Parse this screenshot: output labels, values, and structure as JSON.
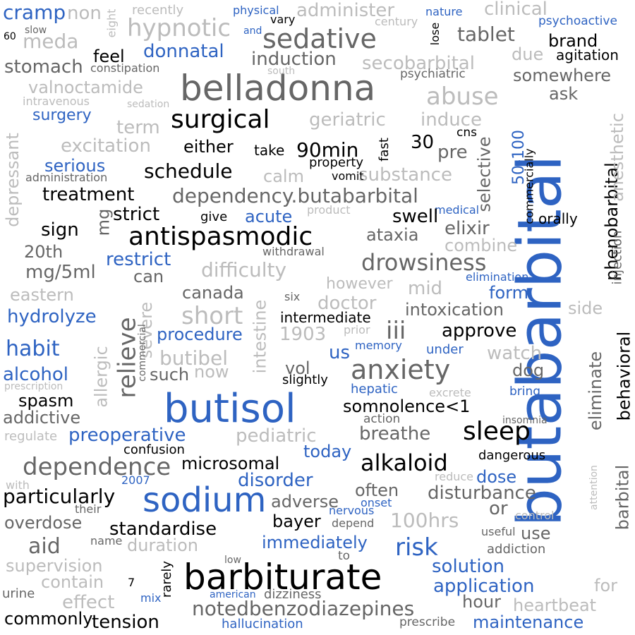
{
  "colors": {
    "black": "#000000",
    "blue": "#2e63c2",
    "dark": "#666666",
    "light": "#bcbcbc",
    "background": "#ffffff"
  },
  "words": [
    {
      "text": "butabarbital",
      "color": "blue",
      "vertical": true
    },
    {
      "text": "belladonna",
      "color": "dark"
    },
    {
      "text": "butisol",
      "color": "blue"
    },
    {
      "text": "barbiturate",
      "color": "black"
    },
    {
      "text": "sodium",
      "color": "blue"
    },
    {
      "text": "antispasmodic",
      "color": "black"
    },
    {
      "text": "sedative",
      "color": "dark"
    },
    {
      "text": "anxiety",
      "color": "dark"
    },
    {
      "text": "surgical",
      "color": "black"
    },
    {
      "text": "dependence",
      "color": "dark"
    },
    {
      "text": "hypnotic",
      "color": "light"
    },
    {
      "text": "abuse",
      "color": "light"
    },
    {
      "text": "sleep",
      "color": "black"
    },
    {
      "text": "alkaloid",
      "color": "black"
    },
    {
      "text": "drowsiness",
      "color": "dark"
    },
    {
      "text": "dependency.butabarbital",
      "color": "dark"
    },
    {
      "text": "notedbenzodiazepines",
      "color": "dark"
    },
    {
      "text": "short",
      "color": "light"
    },
    {
      "text": "risk",
      "color": "blue"
    },
    {
      "text": "relieve",
      "color": "dark",
      "vertical": true
    },
    {
      "text": "schedule",
      "color": "black"
    },
    {
      "text": "secobarbital",
      "color": "light"
    },
    {
      "text": "tablet",
      "color": "dark"
    },
    {
      "text": "difficulty",
      "color": "light"
    },
    {
      "text": "induction",
      "color": "dark"
    },
    {
      "text": "administer",
      "color": "light"
    },
    {
      "text": "geriatric",
      "color": "light"
    },
    {
      "text": "induce",
      "color": "light"
    },
    {
      "text": "excitation",
      "color": "light"
    },
    {
      "text": "substance",
      "color": "light"
    },
    {
      "text": "preoperative",
      "color": "blue"
    },
    {
      "text": "microsomal",
      "color": "black"
    },
    {
      "text": "particularly",
      "color": "black"
    },
    {
      "text": "standardise",
      "color": "black"
    },
    {
      "text": "somnolence<1",
      "color": "black"
    },
    {
      "text": "intoxication",
      "color": "dark"
    },
    {
      "text": "approve",
      "color": "black"
    },
    {
      "text": "immediately",
      "color": "blue"
    },
    {
      "text": "solution",
      "color": "blue"
    },
    {
      "text": "application",
      "color": "blue"
    },
    {
      "text": "maintenance",
      "color": "blue"
    },
    {
      "text": "disturbance",
      "color": "dark"
    },
    {
      "text": "disorder",
      "color": "blue"
    },
    {
      "text": "breathe",
      "color": "dark"
    },
    {
      "text": "pediatric",
      "color": "light"
    },
    {
      "text": "100hrs",
      "color": "light"
    },
    {
      "text": "habit",
      "color": "blue"
    },
    {
      "text": "hydrolyze",
      "color": "blue"
    },
    {
      "text": "alcohol",
      "color": "blue"
    },
    {
      "text": "procedure",
      "color": "blue"
    },
    {
      "text": "butibel",
      "color": "light"
    },
    {
      "text": "canada",
      "color": "dark"
    },
    {
      "text": "doctor",
      "color": "light"
    },
    {
      "text": "iii",
      "color": "dark"
    },
    {
      "text": "90min",
      "color": "black"
    },
    {
      "text": "either",
      "color": "black"
    },
    {
      "text": "treatment",
      "color": "black"
    },
    {
      "text": "strict",
      "color": "black"
    },
    {
      "text": "sign",
      "color": "black"
    },
    {
      "text": "20th",
      "color": "dark"
    },
    {
      "text": "mg/5ml",
      "color": "dark"
    },
    {
      "text": "restrict",
      "color": "blue"
    },
    {
      "text": "serious",
      "color": "blue"
    },
    {
      "text": "surgery",
      "color": "blue"
    },
    {
      "text": "donnatal",
      "color": "blue"
    },
    {
      "text": "feel",
      "color": "black"
    },
    {
      "text": "stomach",
      "color": "dark"
    },
    {
      "text": "meda",
      "color": "light"
    },
    {
      "text": "cramp",
      "color": "blue"
    },
    {
      "text": "non",
      "color": "light"
    },
    {
      "text": "valnoctamide",
      "color": "light"
    },
    {
      "text": "term",
      "color": "light"
    },
    {
      "text": "clinical",
      "color": "light"
    },
    {
      "text": "brand",
      "color": "black"
    },
    {
      "text": "agitation",
      "color": "black"
    },
    {
      "text": "psychoactive",
      "color": "blue"
    },
    {
      "text": "due",
      "color": "light"
    },
    {
      "text": "somewhere",
      "color": "dark"
    },
    {
      "text": "ask",
      "color": "dark"
    },
    {
      "text": "psychiatric",
      "color": "dark"
    },
    {
      "text": "pre",
      "color": "dark"
    },
    {
      "text": "30",
      "color": "black"
    },
    {
      "text": "cns",
      "color": "black"
    },
    {
      "text": "selective",
      "color": "dark",
      "vertical": true
    },
    {
      "text": "50-100",
      "color": "blue",
      "vertical": true
    },
    {
      "text": "commercially",
      "color": "black",
      "vertical": true
    },
    {
      "text": "phenobarbital",
      "color": "black",
      "vertical": true
    },
    {
      "text": "anesthetic",
      "color": "light",
      "vertical": true
    },
    {
      "text": "injection",
      "color": "dark",
      "vertical": true
    },
    {
      "text": "orally",
      "color": "black"
    },
    {
      "text": "medical",
      "color": "blue"
    },
    {
      "text": "elixir",
      "color": "dark"
    },
    {
      "text": "combine",
      "color": "light"
    },
    {
      "text": "swell",
      "color": "black"
    },
    {
      "text": "ataxia",
      "color": "dark"
    },
    {
      "text": "acute",
      "color": "blue"
    },
    {
      "text": "give",
      "color": "black"
    },
    {
      "text": "product",
      "color": "light"
    },
    {
      "text": "withdrawal",
      "color": "dark"
    },
    {
      "text": "calm",
      "color": "light"
    },
    {
      "text": "property",
      "color": "black"
    },
    {
      "text": "vomit",
      "color": "black"
    },
    {
      "text": "fast",
      "color": "black",
      "vertical": true
    },
    {
      "text": "take",
      "color": "black"
    },
    {
      "text": "administration",
      "color": "dark"
    },
    {
      "text": "depressant",
      "color": "light",
      "vertical": true
    },
    {
      "text": "mg",
      "color": "dark",
      "vertical": true
    },
    {
      "text": "eastern",
      "color": "light"
    },
    {
      "text": "can",
      "color": "dark"
    },
    {
      "text": "severe",
      "color": "light",
      "vertical": true
    },
    {
      "text": "commercial",
      "color": "dark",
      "vertical": true
    },
    {
      "text": "allergic",
      "color": "light",
      "vertical": true
    },
    {
      "text": "such",
      "color": "dark"
    },
    {
      "text": "now",
      "color": "light"
    },
    {
      "text": "intestine",
      "color": "light",
      "vertical": true
    },
    {
      "text": "six",
      "color": "dark"
    },
    {
      "text": "intermediate",
      "color": "black"
    },
    {
      "text": "1903",
      "color": "light"
    },
    {
      "text": "prior",
      "color": "light"
    },
    {
      "text": "however",
      "color": "light"
    },
    {
      "text": "mid",
      "color": "light"
    },
    {
      "text": "elimination",
      "color": "blue"
    },
    {
      "text": "form",
      "color": "blue"
    },
    {
      "text": "side",
      "color": "light"
    },
    {
      "text": "watch",
      "color": "light"
    },
    {
      "text": "dog",
      "color": "dark"
    },
    {
      "text": "us",
      "color": "blue"
    },
    {
      "text": "memory",
      "color": "blue"
    },
    {
      "text": "under",
      "color": "blue"
    },
    {
      "text": "vol",
      "color": "dark"
    },
    {
      "text": "slightly",
      "color": "black"
    },
    {
      "text": "hepatic",
      "color": "blue"
    },
    {
      "text": "excrete",
      "color": "light"
    },
    {
      "text": "bring",
      "color": "blue"
    },
    {
      "text": "insomnia",
      "color": "dark"
    },
    {
      "text": "action",
      "color": "dark"
    },
    {
      "text": "today",
      "color": "blue"
    },
    {
      "text": "dangerous",
      "color": "black"
    },
    {
      "text": "eliminate",
      "color": "dark",
      "vertical": true
    },
    {
      "text": "behavioral",
      "color": "black",
      "vertical": true
    },
    {
      "text": "barbital",
      "color": "dark",
      "vertical": true
    },
    {
      "text": "attention",
      "color": "light",
      "vertical": true
    },
    {
      "text": "spasm",
      "color": "black"
    },
    {
      "text": "addictive",
      "color": "dark"
    },
    {
      "text": "prescription",
      "color": "light"
    },
    {
      "text": "regulate",
      "color": "light"
    },
    {
      "text": "confusion",
      "color": "black"
    },
    {
      "text": "with",
      "color": "light"
    },
    {
      "text": "2007",
      "color": "blue"
    },
    {
      "text": "their",
      "color": "dark"
    },
    {
      "text": "overdose",
      "color": "dark"
    },
    {
      "text": "aid",
      "color": "dark"
    },
    {
      "text": "name",
      "color": "dark"
    },
    {
      "text": "duration",
      "color": "light"
    },
    {
      "text": "supervision",
      "color": "light"
    },
    {
      "text": "contain",
      "color": "light"
    },
    {
      "text": "effect",
      "color": "light"
    },
    {
      "text": "urine",
      "color": "dark"
    },
    {
      "text": "mix",
      "color": "blue"
    },
    {
      "text": "7",
      "color": "black"
    },
    {
      "text": "rarely",
      "color": "black",
      "vertical": true
    },
    {
      "text": "commonly",
      "color": "black"
    },
    {
      "text": "tension",
      "color": "black"
    },
    {
      "text": "american",
      "color": "blue"
    },
    {
      "text": "dizziness",
      "color": "dark"
    },
    {
      "text": "hallucination",
      "color": "blue"
    },
    {
      "text": "low",
      "color": "dark"
    },
    {
      "text": "to",
      "color": "dark"
    },
    {
      "text": "prescribe",
      "color": "dark"
    },
    {
      "text": "hour",
      "color": "dark"
    },
    {
      "text": "heartbeat",
      "color": "light"
    },
    {
      "text": "for",
      "color": "light"
    },
    {
      "text": "useful",
      "color": "dark"
    },
    {
      "text": "use",
      "color": "dark"
    },
    {
      "text": "addiction",
      "color": "dark"
    },
    {
      "text": "control",
      "color": "light"
    },
    {
      "text": "reduce",
      "color": "light"
    },
    {
      "text": "or",
      "color": "dark"
    },
    {
      "text": "dose",
      "color": "blue"
    },
    {
      "text": "often",
      "color": "dark"
    },
    {
      "text": "adverse",
      "color": "dark"
    },
    {
      "text": "bayer",
      "color": "black"
    },
    {
      "text": "depend",
      "color": "dark"
    },
    {
      "text": "nervous",
      "color": "blue"
    },
    {
      "text": "onset",
      "color": "blue"
    },
    {
      "text": "physical",
      "color": "blue"
    },
    {
      "text": "and",
      "color": "blue"
    },
    {
      "text": "vary",
      "color": "black"
    },
    {
      "text": "lose",
      "color": "black",
      "vertical": true
    },
    {
      "text": "century",
      "color": "light"
    },
    {
      "text": "nature",
      "color": "blue"
    },
    {
      "text": "south",
      "color": "light"
    },
    {
      "text": "recently",
      "color": "light"
    },
    {
      "text": "eight",
      "color": "light",
      "vertical": true
    },
    {
      "text": "60",
      "color": "black"
    },
    {
      "text": "slow",
      "color": "dark"
    },
    {
      "text": "constipation",
      "color": "dark"
    },
    {
      "text": "intravenous",
      "color": "light"
    },
    {
      "text": "sedation",
      "color": "light"
    }
  ]
}
